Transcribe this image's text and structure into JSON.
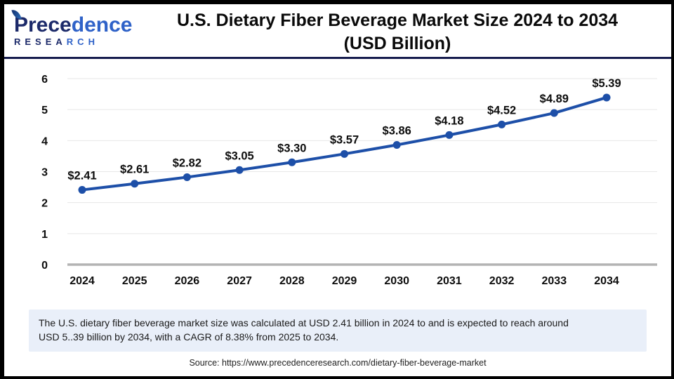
{
  "header": {
    "logo": {
      "name_dark": "Prece",
      "name_light": "dence",
      "sub_dark": "RESEA",
      "sub_light": "RCH"
    },
    "title_line1": "U.S. Dietary Fiber Beverage Market Size 2024 to 2034",
    "title_line2": "(USD Billion)"
  },
  "chart_data": {
    "type": "line",
    "title": "U.S. Dietary Fiber Beverage Market Size 2024 to 2034 (USD Billion)",
    "categories": [
      "2024",
      "2025",
      "2026",
      "2027",
      "2028",
      "2029",
      "2030",
      "2031",
      "2032",
      "2033",
      "2034"
    ],
    "values": [
      2.41,
      2.61,
      2.82,
      3.05,
      3.3,
      3.57,
      3.86,
      4.18,
      4.52,
      4.89,
      5.39
    ],
    "point_labels": [
      "$2.41",
      "$2.61",
      "$2.82",
      "$3.05",
      "$3.30",
      "$3.57",
      "$3.86",
      "$4.18",
      "$4.52",
      "$4.89",
      "$5.39"
    ],
    "xlabel": "",
    "ylabel": "",
    "ylim": [
      0,
      6
    ],
    "yticks": [
      0,
      1,
      2,
      3,
      4,
      5,
      6
    ],
    "grid": true,
    "legend": "none",
    "line_color": "#1d4fa8",
    "marker": "circle"
  },
  "footer": {
    "description_line1": "The U.S. dietary fiber beverage market size was calculated at USD 2.41 billion in 2024 to and is expected to reach around",
    "description_line2": "USD 5..39 billion by 2034, with a CAGR of 8.38% from 2025 to 2034.",
    "source": "Source: https://www.precedenceresearch.com/dietary-fiber-beverage-market"
  },
  "colors": {
    "line": "#1d4fa8",
    "grid": "#e7e7e7",
    "zero_axis": "#b3b3b3",
    "header_rule": "#171d4e",
    "desc_background": "#e9eff9",
    "logo_dark": "#1c2a6a",
    "logo_light": "#2f62c8"
  }
}
